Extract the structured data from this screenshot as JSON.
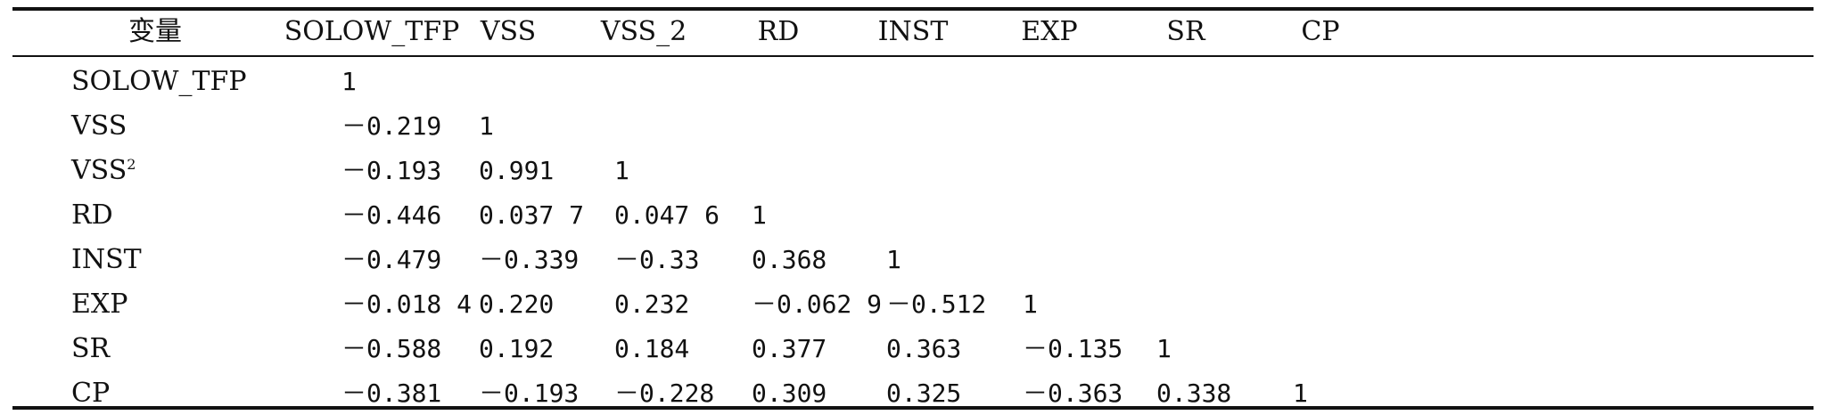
{
  "table": {
    "headers": [
      "变量",
      "SOLOW_TFP",
      "VSS",
      "VSS_2",
      "RD",
      "INST",
      "EXP",
      "SR",
      "CP"
    ],
    "rows": [
      {
        "label": "SOLOW_TFP",
        "sup": "",
        "values": [
          "1"
        ]
      },
      {
        "label": "VSS",
        "sup": "",
        "values": [
          "－0.219",
          "1"
        ]
      },
      {
        "label": "VSS",
        "sup": "2",
        "values": [
          "－0.193",
          "0.991",
          "1"
        ]
      },
      {
        "label": "RD",
        "sup": "",
        "values": [
          "－0.446",
          "0.037 7",
          "0.047 6",
          "1"
        ]
      },
      {
        "label": "INST",
        "sup": "",
        "values": [
          "－0.479",
          "－0.339",
          "－0.33",
          "0.368",
          "1"
        ]
      },
      {
        "label": "EXP",
        "sup": "",
        "values": [
          "－0.018 4",
          "0.220",
          "0.232",
          "－0.062 9",
          "－0.512",
          "1"
        ]
      },
      {
        "label": "SR",
        "sup": "",
        "values": [
          "－0.588",
          "0.192",
          "0.184",
          "0.377",
          "0.363",
          "－0.135",
          "1"
        ]
      },
      {
        "label": "CP",
        "sup": "",
        "values": [
          "－0.381",
          "－0.193",
          "－0.228",
          "0.309",
          "0.325",
          "－0.363",
          "0.338",
          "1"
        ]
      }
    ]
  }
}
